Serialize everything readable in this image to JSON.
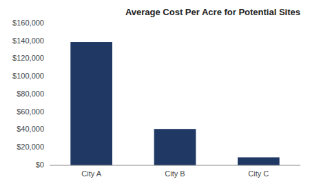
{
  "chart_data": {
    "type": "bar",
    "title": "Average Cost Per Acre for Potential Sites",
    "categories": [
      "City A",
      "City B",
      "City C"
    ],
    "values": [
      139000,
      41000,
      9000
    ],
    "color": "#1F3864",
    "ylim": [
      0,
      160000
    ],
    "yticks": [
      {
        "value": 0,
        "label": "$0"
      },
      {
        "value": 20000,
        "label": "$20,000"
      },
      {
        "value": 40000,
        "label": "$40,000"
      },
      {
        "value": 60000,
        "label": "$60,000"
      },
      {
        "value": 80000,
        "label": "$80,000"
      },
      {
        "value": 100000,
        "label": "$100,000"
      },
      {
        "value": 120000,
        "label": "$120,000"
      },
      {
        "value": 140000,
        "label": "$140,000"
      },
      {
        "value": 160000,
        "label": "$160,000"
      }
    ],
    "grid": false
  }
}
